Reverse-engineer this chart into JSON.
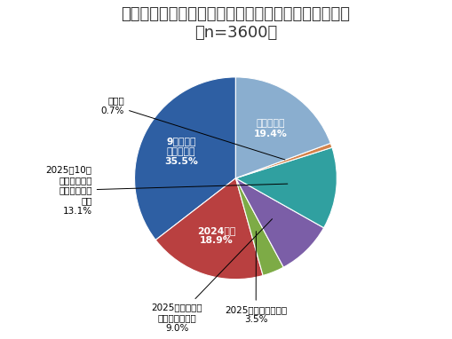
{
  "title": "衆議院の解散・総選挙はいつ行うのがよいと思うか？\n（n=3600）",
  "title_fontsize": 13,
  "labels": [
    "9月の自民\n党総裁選前\n35.5%",
    "2024年内\n18.9%",
    "2025年になってから\n3.5%",
    "2025年夏の参議\n院選挙と同時に\n9.0%",
    "2025年10月\nの任期満了ま\nで行う必要は\nない\n13.1%",
    "その他\n0.7%",
    "わからない\n19.4%"
  ],
  "external_labels": [
    "9月の自民\n党総裁選前\n35.5%",
    "2024年内\n18.9%",
    "2025年になってから\n3.5%",
    "2025年夏の参議\n院選挙と同時に\n9.0%",
    "2025年10月\nの任期満了ま\nで行う必要は\nない\n13.1%",
    "その他\n0.7%",
    "わからない\n19.4%"
  ],
  "sizes": [
    35.5,
    18.9,
    3.5,
    9.0,
    13.1,
    0.7,
    19.4
  ],
  "colors": [
    "#2e5fa3",
    "#b94040",
    "#7dab46",
    "#7b5ea7",
    "#30a0a0",
    "#d4824a",
    "#8aaecf"
  ],
  "startangle": 90,
  "background_color": "#ffffff"
}
